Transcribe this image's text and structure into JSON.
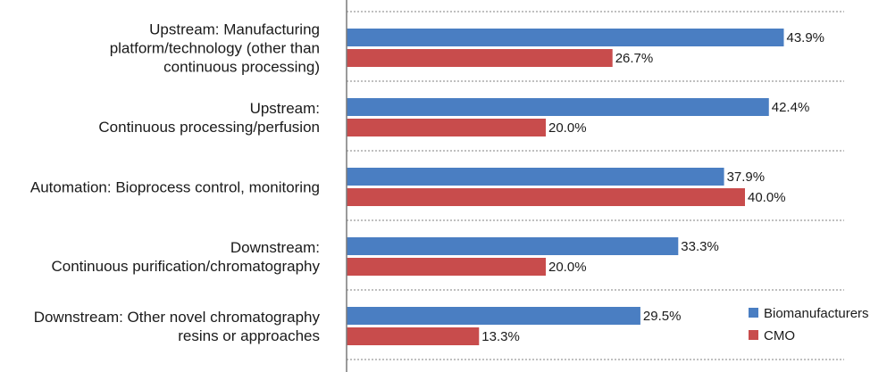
{
  "chart_data": {
    "type": "bar",
    "orientation": "horizontal",
    "categories": [
      [
        "Upstream: Manufacturing",
        "platform/technology (other than",
        "continuous processing)"
      ],
      [
        "Upstream:",
        "Continuous processing/perfusion"
      ],
      [
        "Automation: Bioprocess control, monitoring"
      ],
      [
        "Downstream:",
        "Continuous purification/chromatography"
      ],
      [
        "Downstream: Other novel chromatography",
        "resins or approaches"
      ]
    ],
    "series": [
      {
        "name": "Biomanufacturers",
        "color": "#4a7ec2",
        "values": [
          43.9,
          42.4,
          37.9,
          33.3,
          29.5
        ],
        "labels": [
          "43.9%",
          "42.4%",
          "37.9%",
          "33.3%",
          "29.5%"
        ]
      },
      {
        "name": "CMO",
        "color": "#c84c4c",
        "values": [
          26.7,
          20.0,
          40.0,
          20.0,
          13.3
        ],
        "labels": [
          "26.7%",
          "20.0%",
          "40.0%",
          "20.0%",
          "13.3%"
        ]
      }
    ],
    "xlim": [
      0,
      50
    ],
    "grid": true,
    "legend_position": "bottom-right"
  }
}
